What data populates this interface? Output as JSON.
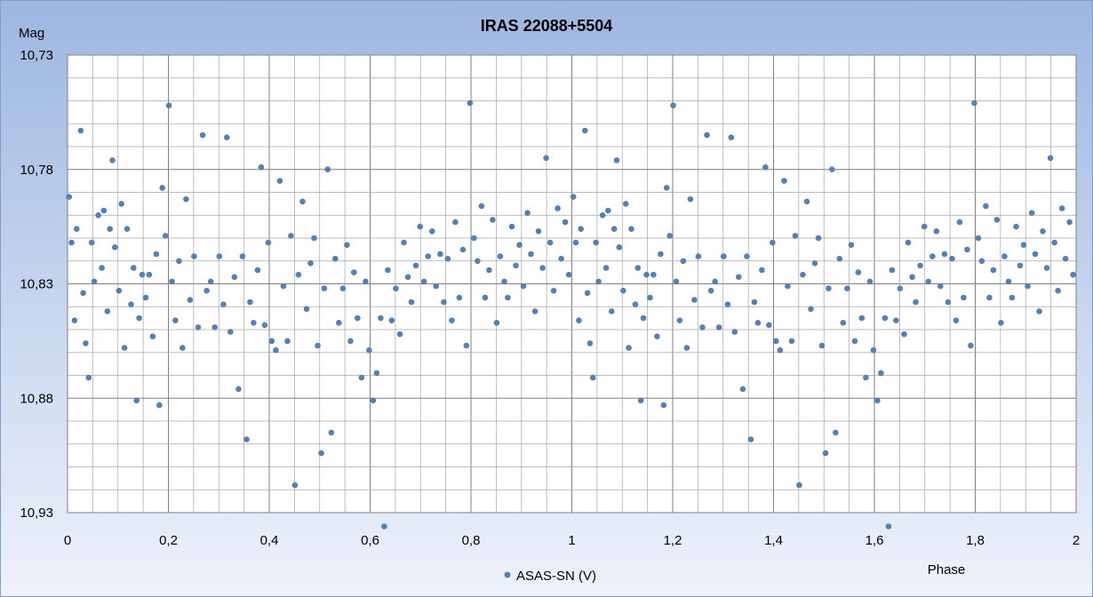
{
  "chart_data": {
    "type": "scatter",
    "title": "IRAS 22088+5504",
    "xlabel": "Phase",
    "ylabel": "Mag",
    "xlim": [
      0,
      2
    ],
    "ylim": [
      10.73,
      10.93
    ],
    "y_inverted": true,
    "x_tick_labels": [
      "0",
      "0,2",
      "0,4",
      "0,6",
      "0,8",
      "1",
      "1,2",
      "1,4",
      "1,6",
      "1,8",
      "2"
    ],
    "y_tick_labels": [
      "10,73",
      "10,78",
      "10,83",
      "10,88",
      "10,93"
    ],
    "grid": true,
    "legend_position": "bottom-center",
    "colors": {
      "series": "#4f81bd",
      "plot_background": "#ffffff",
      "grid": "#a6a6a6"
    },
    "series": [
      {
        "name": "ASAS-SN (V)",
        "phase_min": 0,
        "phase_max": 1,
        "repeated_with_phase_offset": 1,
        "points": [
          [
            0.003,
            10.792
          ],
          [
            0.008,
            10.812
          ],
          [
            0.014,
            10.846
          ],
          [
            0.018,
            10.806
          ],
          [
            0.026,
            10.763
          ],
          [
            0.031,
            10.834
          ],
          [
            0.036,
            10.856
          ],
          [
            0.042,
            10.871
          ],
          [
            0.048,
            10.812
          ],
          [
            0.053,
            10.829
          ],
          [
            0.061,
            10.8
          ],
          [
            0.068,
            10.823
          ],
          [
            0.072,
            10.798
          ],
          [
            0.079,
            10.842
          ],
          [
            0.084,
            10.806
          ],
          [
            0.089,
            10.776
          ],
          [
            0.094,
            10.814
          ],
          [
            0.102,
            10.833
          ],
          [
            0.107,
            10.795
          ],
          [
            0.113,
            10.858
          ],
          [
            0.118,
            10.806
          ],
          [
            0.126,
            10.839
          ],
          [
            0.131,
            10.823
          ],
          [
            0.137,
            10.881
          ],
          [
            0.142,
            10.845
          ],
          [
            0.148,
            10.826
          ],
          [
            0.155,
            10.836
          ],
          [
            0.162,
            10.826
          ],
          [
            0.169,
            10.853
          ],
          [
            0.176,
            10.817
          ],
          [
            0.182,
            10.883
          ],
          [
            0.188,
            10.788
          ],
          [
            0.194,
            10.809
          ],
          [
            0.201,
            10.752
          ],
          [
            0.207,
            10.829
          ],
          [
            0.214,
            10.846
          ],
          [
            0.221,
            10.82
          ],
          [
            0.228,
            10.858
          ],
          [
            0.235,
            10.793
          ],
          [
            0.243,
            10.837
          ],
          [
            0.251,
            10.818
          ],
          [
            0.259,
            10.849
          ],
          [
            0.268,
            10.765
          ],
          [
            0.276,
            10.833
          ],
          [
            0.284,
            10.829
          ],
          [
            0.292,
            10.849
          ],
          [
            0.301,
            10.818
          ],
          [
            0.309,
            10.839
          ],
          [
            0.316,
            10.766
          ],
          [
            0.323,
            10.851
          ],
          [
            0.331,
            10.827
          ],
          [
            0.339,
            10.876
          ],
          [
            0.347,
            10.818
          ],
          [
            0.355,
            10.898
          ],
          [
            0.362,
            10.838
          ],
          [
            0.369,
            10.847
          ],
          [
            0.377,
            10.824
          ],
          [
            0.384,
            10.779
          ],
          [
            0.391,
            10.848
          ],
          [
            0.398,
            10.812
          ],
          [
            0.405,
            10.855
          ],
          [
            0.413,
            10.859
          ],
          [
            0.421,
            10.785
          ],
          [
            0.428,
            10.831
          ],
          [
            0.436,
            10.855
          ],
          [
            0.443,
            10.809
          ],
          [
            0.451,
            10.918
          ],
          [
            0.458,
            10.826
          ],
          [
            0.466,
            10.794
          ],
          [
            0.474,
            10.841
          ],
          [
            0.482,
            10.821
          ],
          [
            0.489,
            10.81
          ],
          [
            0.496,
            10.857
          ],
          [
            0.503,
            10.904
          ],
          [
            0.509,
            10.832
          ],
          [
            0.516,
            10.78
          ],
          [
            0.523,
            10.895
          ],
          [
            0.531,
            10.819
          ],
          [
            0.538,
            10.847
          ],
          [
            0.546,
            10.832
          ],
          [
            0.554,
            10.813
          ],
          [
            0.561,
            10.855
          ],
          [
            0.568,
            10.825
          ],
          [
            0.575,
            10.845
          ],
          [
            0.583,
            10.871
          ],
          [
            0.591,
            10.829
          ],
          [
            0.598,
            10.859
          ],
          [
            0.606,
            10.881
          ],
          [
            0.613,
            10.869
          ],
          [
            0.621,
            10.845
          ],
          [
            0.628,
            10.936
          ],
          [
            0.635,
            10.824
          ],
          [
            0.643,
            10.846
          ],
          [
            0.651,
            10.832
          ],
          [
            0.659,
            10.852
          ],
          [
            0.667,
            10.812
          ],
          [
            0.675,
            10.827
          ],
          [
            0.682,
            10.838
          ],
          [
            0.691,
            10.822
          ],
          [
            0.699,
            10.805
          ],
          [
            0.707,
            10.829
          ],
          [
            0.715,
            10.818
          ],
          [
            0.723,
            10.807
          ],
          [
            0.731,
            10.831
          ],
          [
            0.739,
            10.817
          ],
          [
            0.746,
            10.838
          ],
          [
            0.754,
            10.819
          ],
          [
            0.762,
            10.846
          ],
          [
            0.769,
            10.803
          ],
          [
            0.777,
            10.836
          ],
          [
            0.784,
            10.815
          ],
          [
            0.791,
            10.857
          ],
          [
            0.798,
            10.751
          ],
          [
            0.806,
            10.81
          ],
          [
            0.813,
            10.82
          ],
          [
            0.821,
            10.796
          ],
          [
            0.828,
            10.836
          ],
          [
            0.836,
            10.824
          ],
          [
            0.843,
            10.802
          ],
          [
            0.851,
            10.847
          ],
          [
            0.858,
            10.818
          ],
          [
            0.866,
            10.829
          ],
          [
            0.873,
            10.836
          ],
          [
            0.881,
            10.805
          ],
          [
            0.889,
            10.822
          ],
          [
            0.896,
            10.813
          ],
          [
            0.904,
            10.831
          ],
          [
            0.912,
            10.799
          ],
          [
            0.919,
            10.817
          ],
          [
            0.927,
            10.842
          ],
          [
            0.934,
            10.807
          ],
          [
            0.942,
            10.823
          ],
          [
            0.949,
            10.775
          ],
          [
            0.957,
            10.812
          ],
          [
            0.964,
            10.833
          ],
          [
            0.972,
            10.797
          ],
          [
            0.979,
            10.819
          ],
          [
            0.987,
            10.803
          ],
          [
            0.994,
            10.826
          ]
        ]
      }
    ]
  }
}
